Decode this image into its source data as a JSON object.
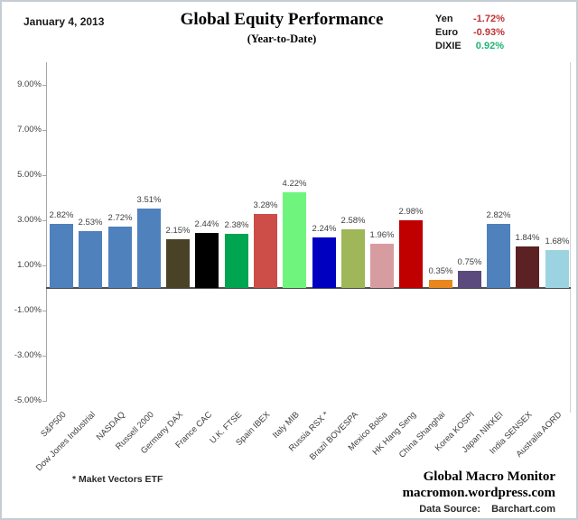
{
  "header": {
    "date": "January 4, 2013",
    "title": "Global Equity Performance",
    "subtitle": "(Year-to-Date)"
  },
  "legend": {
    "items": [
      {
        "label": "Yen",
        "value": "-1.72%",
        "color": "#be3333"
      },
      {
        "label": "Euro",
        "value": "-0.93%",
        "color": "#be3333"
      },
      {
        "label": "DIXIE",
        "value": "0.92%",
        "color": "#1fb473"
      }
    ]
  },
  "chart_data": {
    "type": "bar",
    "title": "Global Equity Performance",
    "subtitle": "(Year-to-Date)",
    "xlabel": "",
    "ylabel": "",
    "ylim": [
      -5,
      10
    ],
    "grid": false,
    "legend_position": "none",
    "value_label_format": "percent_2dp",
    "categories": [
      "S&P500",
      "Dow Jones Industrial",
      "NASDAQ",
      "Russell 2000",
      "Germany DAX",
      "France CAC",
      "U.K. FTSE",
      "Spain IBEX",
      "Italy MIB",
      "Russia RSX *",
      "Brazil BOVESPA",
      "Mexico Bolsa",
      "HK Hang Seng",
      "China Shanghai",
      "Korea KOSPI",
      "Japan NIKKEI",
      "India SENSEX",
      "Australia AORD"
    ],
    "values": [
      2.82,
      2.53,
      2.72,
      3.51,
      2.15,
      2.44,
      2.38,
      3.28,
      4.22,
      2.24,
      2.58,
      1.96,
      2.98,
      0.35,
      0.75,
      2.82,
      1.84,
      1.68
    ],
    "value_labels": [
      "2.82%",
      "2.53%",
      "2.72%",
      "3.51%",
      "2.15%",
      "2.44%",
      "2.38%",
      "3.28%",
      "4.22%",
      "2.24%",
      "2.58%",
      "1.96%",
      "2.98%",
      "0.35%",
      "0.75%",
      "2.82%",
      "1.84%",
      "1.68%"
    ],
    "bar_colors": [
      "#4f81bd",
      "#4f81bd",
      "#4f81bd",
      "#4f81bd",
      "#4a4227",
      "#000000",
      "#00a551",
      "#cd4d48",
      "#6ff57d",
      "#0000c0",
      "#9fb659",
      "#d69ca0",
      "#c00000",
      "#e8871d",
      "#5a4a7d",
      "#4f81bd",
      "#5b2123",
      "#9cd3e1"
    ],
    "yticks": [
      {
        "value": 9,
        "label": "9.00%"
      },
      {
        "value": 7,
        "label": "7.00%"
      },
      {
        "value": 5,
        "label": "5.00%"
      },
      {
        "value": 3,
        "label": "3.00%"
      },
      {
        "value": 1,
        "label": "1.00%"
      },
      {
        "value": -1,
        "label": "-1.00%"
      },
      {
        "value": -3,
        "label": "-3.00%"
      },
      {
        "value": -5,
        "label": "-5.00%"
      }
    ]
  },
  "footer": {
    "footnote": "* Maket Vectors ETF",
    "brand_line1": "Global Macro Monitor",
    "brand_line2": "macromon.wordpress.com",
    "source_label": "Data Source:",
    "source_value": "Barchart.com"
  }
}
